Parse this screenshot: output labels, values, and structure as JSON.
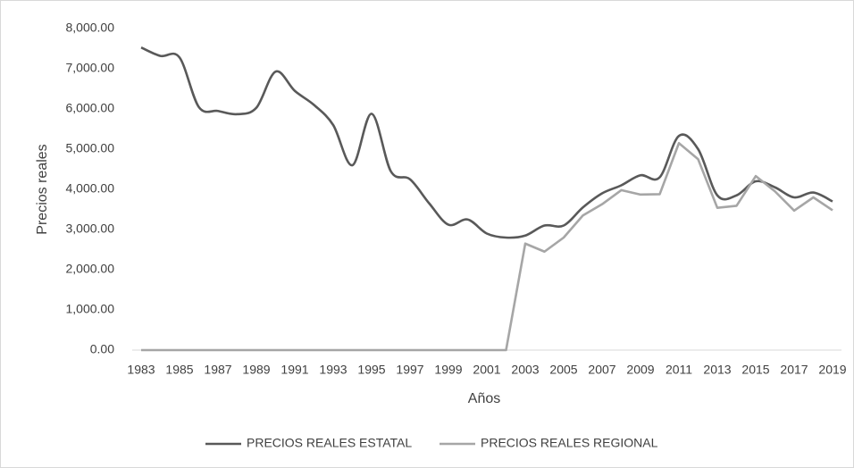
{
  "chart_data": {
    "type": "line",
    "x_label": "Años",
    "y_label": "Precios reales",
    "x": [
      1983,
      1984,
      1985,
      1986,
      1987,
      1988,
      1989,
      1990,
      1991,
      1992,
      1993,
      1994,
      1995,
      1996,
      1997,
      1998,
      1999,
      2000,
      2001,
      2002,
      2003,
      2004,
      2005,
      2006,
      2007,
      2008,
      2009,
      2010,
      2011,
      2012,
      2013,
      2014,
      2015,
      2016,
      2017,
      2018,
      2019
    ],
    "series": [
      {
        "name": "PRECIOS REALES ESTATAL",
        "color": "#595959",
        "smooth": true,
        "values": [
          7530,
          7320,
          7280,
          6050,
          5950,
          5870,
          6030,
          6930,
          6450,
          6100,
          5600,
          4600,
          5880,
          4450,
          4250,
          3650,
          3120,
          3250,
          2900,
          2800,
          2850,
          3100,
          3100,
          3550,
          3900,
          4100,
          4350,
          4300,
          5330,
          5000,
          3850,
          3850,
          4200,
          4050,
          3800,
          3920,
          3700
        ]
      },
      {
        "name": "PRECIOS REALES REGIONAL",
        "color": "#a6a6a6",
        "smooth": false,
        "values": [
          0,
          0,
          0,
          0,
          0,
          0,
          0,
          0,
          0,
          0,
          0,
          0,
          0,
          0,
          0,
          0,
          0,
          0,
          0,
          0,
          2650,
          2450,
          2800,
          3350,
          3630,
          3980,
          3870,
          3880,
          5150,
          4750,
          3540,
          3590,
          4330,
          3950,
          3470,
          3800,
          3480
        ]
      }
    ],
    "xlim": [
      1983,
      2019
    ],
    "xticks": [
      1983,
      1985,
      1987,
      1989,
      1991,
      1993,
      1995,
      1997,
      1999,
      2001,
      2003,
      2005,
      2007,
      2009,
      2011,
      2013,
      2015,
      2017,
      2019
    ],
    "ylim": [
      0,
      8000
    ],
    "yticks": [
      {
        "value": 0,
        "label": "0.00"
      },
      {
        "value": 1000,
        "label": "1,000.00"
      },
      {
        "value": 2000,
        "label": "2,000.00"
      },
      {
        "value": 3000,
        "label": "3,000.00"
      },
      {
        "value": 4000,
        "label": "4,000.00"
      },
      {
        "value": 5000,
        "label": "5,000.00"
      },
      {
        "value": 6000,
        "label": "6,000.00"
      },
      {
        "value": 7000,
        "label": "7,000.00"
      },
      {
        "value": 8000,
        "label": "8,000.00"
      }
    ],
    "grid": false,
    "legend": "bottom"
  }
}
